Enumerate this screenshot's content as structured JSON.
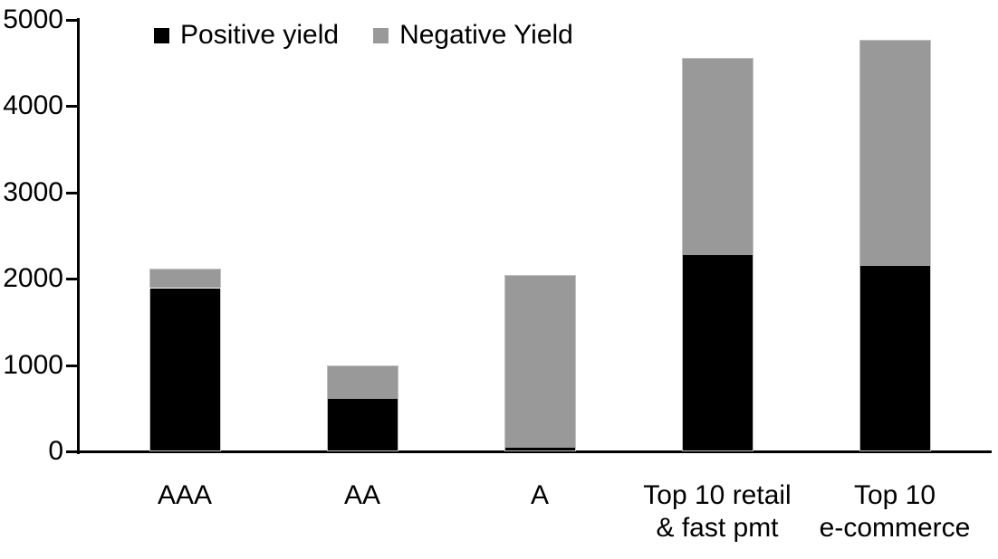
{
  "chart_data": {
    "type": "bar",
    "stacked": true,
    "categories": [
      "AAA",
      "AA",
      "A",
      "Top 10 retail & fast pmt",
      "Top 10 e-commerce"
    ],
    "category_label_lines": [
      [
        "AAA"
      ],
      [
        "AA"
      ],
      [
        "A"
      ],
      [
        "Top 10 retail",
        "& fast pmt"
      ],
      [
        "Top 10",
        "e-commerce"
      ]
    ],
    "series": [
      {
        "name": "Positive yield",
        "color": "#000000",
        "values": [
          1890,
          610,
          40,
          2270,
          2150
        ]
      },
      {
        "name": "Negative Yield",
        "color": "#999999",
        "values": [
          220,
          390,
          2000,
          2290,
          2610
        ]
      }
    ],
    "totals": [
      2110,
      1000,
      2040,
      4560,
      4760
    ],
    "title": "",
    "xlabel": "",
    "ylabel": "",
    "ylim": [
      0,
      5000
    ],
    "ytick_interval": 1000,
    "yticks": [
      "0",
      "1000",
      "2000",
      "3000",
      "4000",
      "5000"
    ],
    "grid": false,
    "legend_position": "top-left-inside"
  },
  "colors": {
    "positive": "#000000",
    "negative": "#999999",
    "bar_border": "#c0c0c0",
    "axis": "#000000",
    "background": "#ffffff"
  }
}
